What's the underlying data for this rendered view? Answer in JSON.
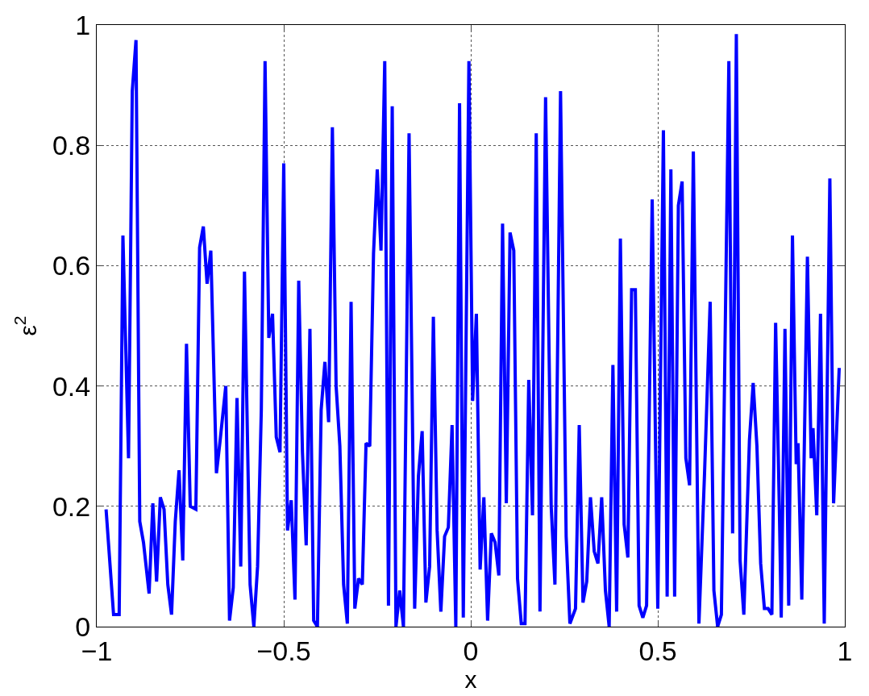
{
  "chart_data": {
    "type": "line",
    "xlabel": "x",
    "ylabel": "ε$^{2}$",
    "xlim": [
      -1,
      1
    ],
    "ylim": [
      0,
      1
    ],
    "xticks": [
      {
        "value": -1,
        "label": "−1"
      },
      {
        "value": -0.5,
        "label": "−0.5"
      },
      0,
      0.5,
      1
    ],
    "yticks": [
      0,
      0.2,
      0.4,
      0.6,
      0.8,
      1
    ],
    "grid": true,
    "line_style": "solid",
    "marker": "none",
    "series": [
      {
        "color": "#0000ff",
        "x": [
          -0.975,
          -0.955,
          -0.94,
          -0.93,
          -0.915,
          -0.905,
          -0.895,
          -0.885,
          -0.875,
          -0.86,
          -0.85,
          -0.84,
          -0.83,
          -0.82,
          -0.81,
          -0.8,
          -0.79,
          -0.78,
          -0.77,
          -0.76,
          -0.75,
          -0.735,
          -0.725,
          -0.715,
          -0.705,
          -0.695,
          -0.68,
          -0.67,
          -0.655,
          -0.645,
          -0.635,
          -0.625,
          -0.615,
          -0.605,
          -0.59,
          -0.58,
          -0.57,
          -0.56,
          -0.55,
          -0.54,
          -0.53,
          -0.52,
          -0.51,
          -0.5,
          -0.49,
          -0.48,
          -0.47,
          -0.46,
          -0.45,
          -0.44,
          -0.43,
          -0.42,
          -0.41,
          -0.4,
          -0.39,
          -0.38,
          -0.37,
          -0.36,
          -0.35,
          -0.34,
          -0.33,
          -0.32,
          -0.31,
          -0.3,
          -0.29,
          -0.28,
          -0.27,
          -0.26,
          -0.25,
          -0.24,
          -0.23,
          -0.22,
          -0.21,
          -0.2,
          -0.19,
          -0.18,
          -0.165,
          -0.15,
          -0.14,
          -0.13,
          -0.12,
          -0.11,
          -0.1,
          -0.09,
          -0.08,
          -0.07,
          -0.06,
          -0.05,
          -0.04,
          -0.03,
          -0.02,
          -0.005,
          0.005,
          0.015,
          0.025,
          0.035,
          0.045,
          0.055,
          0.065,
          0.075,
          0.085,
          0.095,
          0.105,
          0.115,
          0.125,
          0.135,
          0.145,
          0.155,
          0.165,
          0.175,
          0.185,
          0.2,
          0.215,
          0.225,
          0.24,
          0.255,
          0.265,
          0.28,
          0.29,
          0.3,
          0.31,
          0.32,
          0.33,
          0.34,
          0.35,
          0.36,
          0.37,
          0.38,
          0.39,
          0.4,
          0.41,
          0.42,
          0.43,
          0.44,
          0.45,
          0.46,
          0.47,
          0.485,
          0.5,
          0.515,
          0.525,
          0.535,
          0.545,
          0.555,
          0.565,
          0.575,
          0.585,
          0.595,
          0.61,
          0.625,
          0.64,
          0.65,
          0.66,
          0.67,
          0.69,
          0.7,
          0.71,
          0.72,
          0.73,
          0.745,
          0.755,
          0.765,
          0.775,
          0.785,
          0.795,
          0.805,
          0.815,
          0.825,
          0.83,
          0.84,
          0.85,
          0.86,
          0.87,
          0.875,
          0.885,
          0.9,
          0.91,
          0.915,
          0.925,
          0.935,
          0.945,
          0.96,
          0.97,
          0.985
        ],
        "values": [
          0.195,
          0.02,
          0.02,
          0.65,
          0.28,
          0.89,
          0.975,
          0.175,
          0.14,
          0.055,
          0.205,
          0.075,
          0.215,
          0.195,
          0.07,
          0.02,
          0.175,
          0.26,
          0.11,
          0.47,
          0.2,
          0.195,
          0.63,
          0.665,
          0.57,
          0.625,
          0.255,
          0.31,
          0.4,
          0.01,
          0.065,
          0.38,
          0.1,
          0.59,
          0.07,
          0.0,
          0.1,
          0.36,
          0.94,
          0.48,
          0.52,
          0.315,
          0.29,
          0.77,
          0.16,
          0.21,
          0.045,
          0.575,
          0.29,
          0.135,
          0.495,
          0.01,
          0.0,
          0.36,
          0.44,
          0.34,
          0.83,
          0.4,
          0.3,
          0.07,
          0.005,
          0.54,
          0.03,
          0.08,
          0.07,
          0.305,
          0.3,
          0.62,
          0.76,
          0.625,
          0.94,
          0.035,
          0.865,
          0.0,
          0.06,
          0.0,
          0.82,
          0.03,
          0.25,
          0.325,
          0.04,
          0.1,
          0.515,
          0.16,
          0.025,
          0.15,
          0.165,
          0.335,
          0.0,
          0.87,
          0.015,
          0.94,
          0.375,
          0.52,
          0.095,
          0.215,
          0.01,
          0.155,
          0.14,
          0.085,
          0.67,
          0.205,
          0.655,
          0.625,
          0.08,
          0.005,
          0.005,
          0.41,
          0.185,
          0.82,
          0.025,
          0.88,
          0.2,
          0.07,
          0.89,
          0.15,
          0.005,
          0.03,
          0.335,
          0.04,
          0.075,
          0.215,
          0.125,
          0.105,
          0.215,
          0.06,
          0.0,
          0.435,
          0.025,
          0.645,
          0.17,
          0.115,
          0.56,
          0.56,
          0.035,
          0.015,
          0.035,
          0.71,
          0.03,
          0.825,
          0.05,
          0.76,
          0.05,
          0.7,
          0.74,
          0.28,
          0.235,
          0.79,
          0.005,
          0.255,
          0.54,
          0.06,
          0.0,
          0.02,
          0.94,
          0.155,
          0.985,
          0.11,
          0.02,
          0.31,
          0.405,
          0.3,
          0.105,
          0.03,
          0.03,
          0.02,
          0.505,
          0.195,
          0.015,
          0.495,
          0.035,
          0.65,
          0.27,
          0.305,
          0.045,
          0.615,
          0.28,
          0.33,
          0.185,
          0.52,
          0.005,
          0.745,
          0.205,
          0.43
        ]
      }
    ]
  }
}
